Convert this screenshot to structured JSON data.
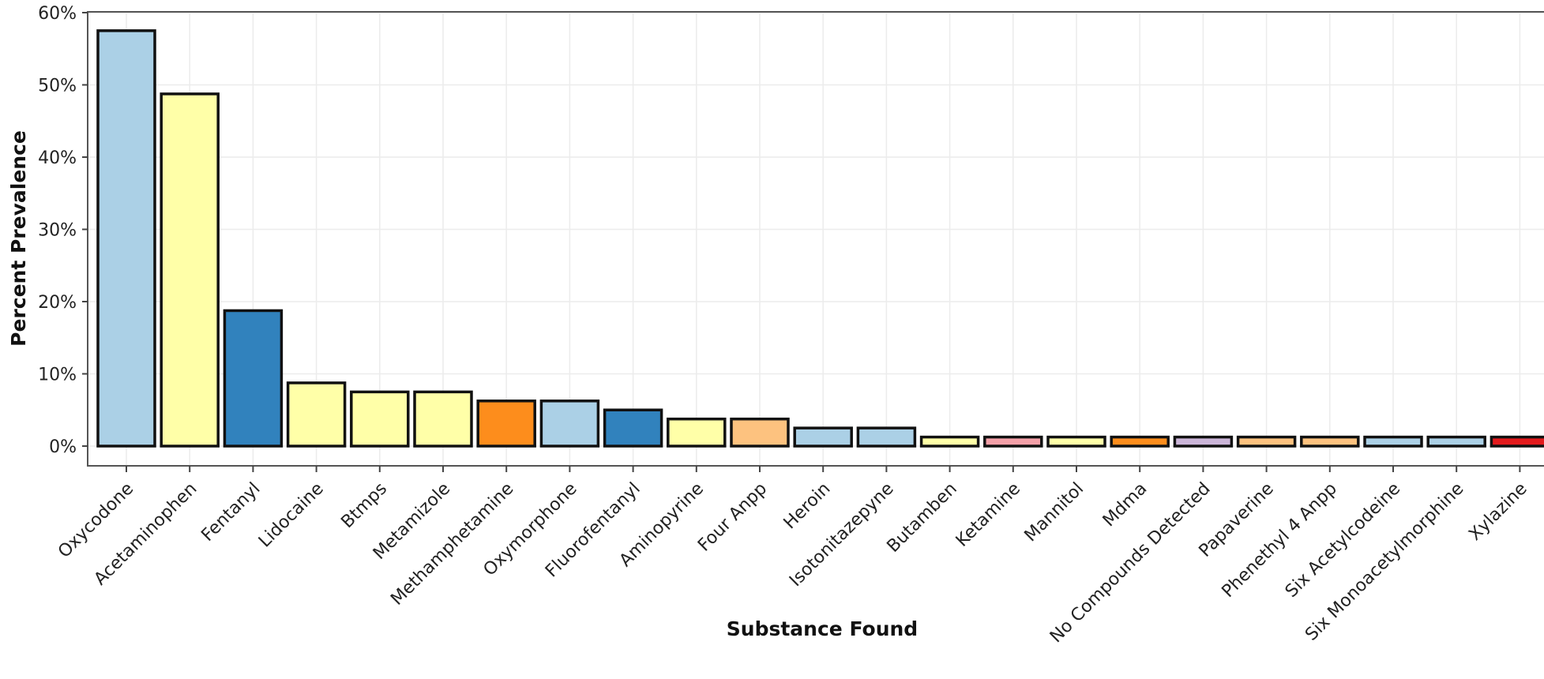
{
  "chart_data": {
    "type": "bar",
    "xlabel": "Substance Found",
    "ylabel": "Percent Prevalence",
    "ylim": [
      0,
      60
    ],
    "y_ticks": [
      0,
      10,
      20,
      30,
      40,
      50,
      60
    ],
    "y_tick_labels": [
      "0%",
      "10%",
      "20%",
      "30%",
      "40%",
      "50%",
      "60%"
    ],
    "grid": true,
    "legend": "none",
    "categories": [
      "Oxycodone",
      "Acetaminophen",
      "Fentanyl",
      "Lidocaine",
      "Btmps",
      "Metamizole",
      "Methamphetamine",
      "Oxymorphone",
      "Fluorofentanyl",
      "Aminopyrine",
      "Four Anpp",
      "Heroin",
      "Isotonitazepyne",
      "Butamben",
      "Ketamine",
      "Mannitol",
      "Mdma",
      "No Compounds Detected",
      "Papaverine",
      "Phenethyl 4 Anpp",
      "Six Acetylcodeine",
      "Six Monoacetylmorphine",
      "Xylazine"
    ],
    "values": [
      57.5,
      48.75,
      18.75,
      8.75,
      7.5,
      7.5,
      6.25,
      6.25,
      5.0,
      3.75,
      3.75,
      2.5,
      2.5,
      1.25,
      1.25,
      1.25,
      1.25,
      1.25,
      1.25,
      1.25,
      1.25,
      1.25,
      1.25
    ],
    "colors": [
      "#abd0e6",
      "#ffffa8",
      "#3182bd",
      "#ffffa8",
      "#ffffa8",
      "#ffffa8",
      "#fd8d1c",
      "#abd0e6",
      "#3182bd",
      "#ffffa8",
      "#fdc27f",
      "#abd0e6",
      "#abd0e6",
      "#ffffa8",
      "#f4a0a8",
      "#ffffa8",
      "#fd8d1c",
      "#cbb5d8",
      "#fdc27f",
      "#fdc27f",
      "#abd0e6",
      "#abd0e6",
      "#e31a1c"
    ]
  }
}
